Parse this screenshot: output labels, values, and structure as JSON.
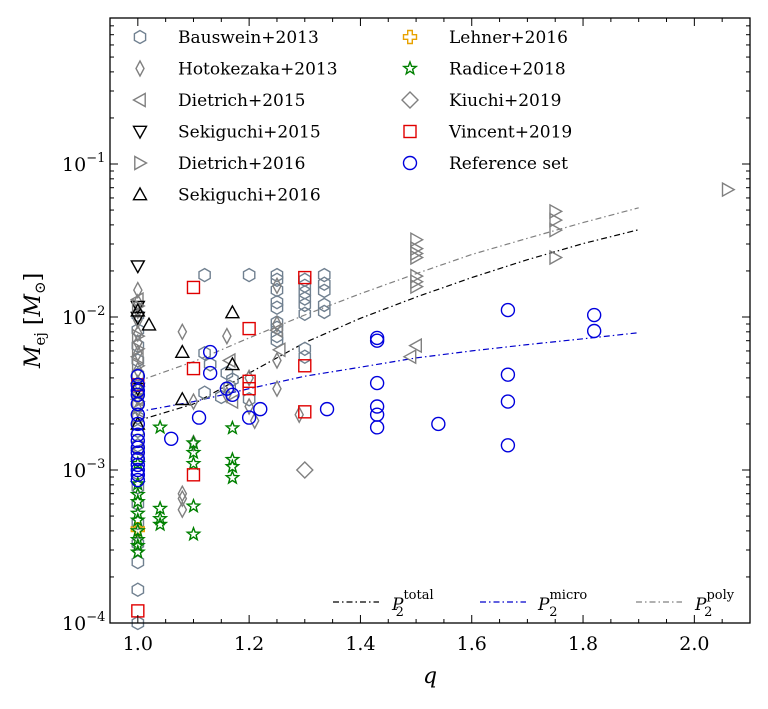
{
  "chart_data": {
    "type": "scatter",
    "title": "",
    "xlabel": "q",
    "ylabel": "M_ej [M_⊙]",
    "xscale": "linear",
    "yscale": "log",
    "xlim": [
      0.95,
      2.1
    ],
    "ylim": [
      0.0001,
      0.9
    ],
    "grid": false,
    "legend_position": "upper-left, two columns",
    "x_ticks": [
      {
        "v": 1.0,
        "label": "1.0"
      },
      {
        "v": 1.2,
        "label": "1.2"
      },
      {
        "v": 1.4,
        "label": "1.4"
      },
      {
        "v": 1.6,
        "label": "1.6"
      },
      {
        "v": 1.8,
        "label": "1.8"
      },
      {
        "v": 2.0,
        "label": "2.0"
      }
    ],
    "y_ticks": [
      {
        "v": 0.0001,
        "base": "10",
        "exp": "−4"
      },
      {
        "v": 0.001,
        "base": "10",
        "exp": "−3"
      },
      {
        "v": 0.01,
        "base": "10",
        "exp": "−2"
      },
      {
        "v": 0.1,
        "base": "10",
        "exp": "−1"
      }
    ],
    "series": [
      {
        "name": "Bauswein+2013",
        "marker": "hexagon",
        "color": "#708090",
        "points": [
          [
            1.0,
            0.0103
          ],
          [
            1.0,
            0.0082
          ],
          [
            1.0,
            0.0065
          ],
          [
            1.0,
            0.0052
          ],
          [
            1.0,
            0.0042
          ],
          [
            1.0,
            0.0033
          ],
          [
            1.0,
            0.0027
          ],
          [
            1.0,
            0.0022
          ],
          [
            1.0,
            0.0018
          ],
          [
            1.0,
            0.00145
          ],
          [
            1.0,
            0.00118
          ],
          [
            1.0,
            0.00095
          ],
          [
            1.0,
            0.00077
          ],
          [
            1.0,
            0.0006
          ],
          [
            1.0,
            0.00045
          ],
          [
            1.0,
            0.00033
          ],
          [
            1.0,
            0.00025
          ],
          [
            1.0,
            0.000165
          ],
          [
            1.0,
            0.0001
          ],
          [
            1.12,
            0.0188
          ],
          [
            1.2,
            0.0188
          ],
          [
            1.25,
            0.0188
          ],
          [
            1.25,
            0.0175
          ],
          [
            1.25,
            0.015
          ],
          [
            1.25,
            0.0125
          ],
          [
            1.25,
            0.0115
          ],
          [
            1.25,
            0.0092
          ],
          [
            1.25,
            0.0085
          ],
          [
            1.25,
            0.0075
          ],
          [
            1.25,
            0.007
          ],
          [
            1.3,
            0.0175
          ],
          [
            1.3,
            0.016
          ],
          [
            1.3,
            0.0145
          ],
          [
            1.3,
            0.0132
          ],
          [
            1.3,
            0.012
          ],
          [
            1.3,
            0.0105
          ],
          [
            1.3,
            0.0062
          ],
          [
            1.3,
            0.0055
          ],
          [
            1.335,
            0.0188
          ],
          [
            1.335,
            0.0165
          ],
          [
            1.335,
            0.0148
          ],
          [
            1.335,
            0.012
          ],
          [
            1.335,
            0.0108
          ],
          [
            1.12,
            0.0058
          ],
          [
            1.13,
            0.0049
          ],
          [
            1.16,
            0.0043
          ],
          [
            1.17,
            0.0039
          ],
          [
            1.165,
            0.0035
          ],
          [
            1.12,
            0.0032
          ],
          [
            1.15,
            0.003
          ],
          [
            1.2,
            0.0029
          ]
        ]
      },
      {
        "name": "Hotokezaka+2013",
        "marker": "thin_diamond",
        "color": "#808080",
        "points": [
          [
            1.0,
            0.015
          ],
          [
            1.0,
            0.0125
          ],
          [
            1.0,
            0.011
          ],
          [
            1.0,
            0.0095
          ],
          [
            1.0,
            0.0078
          ],
          [
            1.0,
            0.0068
          ],
          [
            1.0,
            0.0058
          ],
          [
            1.0,
            0.0045
          ],
          [
            1.0,
            0.0037
          ],
          [
            1.0,
            0.003
          ],
          [
            1.0,
            0.0025
          ],
          [
            1.08,
            0.008
          ],
          [
            1.08,
            0.00055
          ],
          [
            1.08,
            0.00065
          ],
          [
            1.08,
            0.0007
          ],
          [
            1.1,
            0.0028
          ],
          [
            1.1,
            0.0015
          ],
          [
            1.16,
            0.0075
          ],
          [
            1.16,
            0.0031
          ],
          [
            1.2,
            0.004
          ],
          [
            1.2,
            0.0026
          ],
          [
            1.21,
            0.0021
          ],
          [
            1.25,
            0.016
          ],
          [
            1.25,
            0.009
          ],
          [
            1.25,
            0.0052
          ],
          [
            1.25,
            0.0034
          ],
          [
            1.29,
            0.0023
          ]
        ]
      },
      {
        "name": "Dietrich+2015",
        "marker": "triangle-left",
        "color": "#808080",
        "points": [
          [
            1.0,
            0.013
          ],
          [
            1.0,
            0.0055
          ],
          [
            1.0,
            0.0029
          ],
          [
            1.0,
            0.00135
          ],
          [
            1.165,
            0.0052
          ],
          [
            1.25,
            0.0082
          ],
          [
            1.255,
            0.0061
          ],
          [
            1.17,
            0.0028
          ],
          [
            1.5,
            0.0065
          ],
          [
            1.49,
            0.0055
          ]
        ]
      },
      {
        "name": "Sekiguchi+2015",
        "marker": "triangle-down",
        "color": "#000000",
        "points": [
          [
            1.0,
            0.0215
          ],
          [
            1.0,
            0.0117
          ],
          [
            1.0,
            0.0099
          ],
          [
            1.0,
            0.0034
          ]
        ]
      },
      {
        "name": "Dietrich+2016",
        "marker": "triangle-right",
        "color": "#808080",
        "points": [
          [
            2.06,
            0.068
          ],
          [
            1.75,
            0.049
          ],
          [
            1.75,
            0.043
          ],
          [
            1.75,
            0.037
          ],
          [
            1.75,
            0.0245
          ],
          [
            1.5,
            0.032
          ],
          [
            1.5,
            0.028
          ],
          [
            1.5,
            0.026
          ],
          [
            1.5,
            0.0245
          ],
          [
            1.5,
            0.0185
          ],
          [
            1.5,
            0.017
          ],
          [
            1.5,
            0.0158
          ],
          [
            1.0,
            0.0118
          ],
          [
            1.0,
            0.0075
          ],
          [
            1.0,
            0.0062
          ],
          [
            1.0,
            0.0048
          ],
          [
            1.0,
            0.0035
          ],
          [
            1.0,
            0.0028
          ],
          [
            1.0,
            0.0022
          ]
        ]
      },
      {
        "name": "Sekiguchi+2016",
        "marker": "triangle-up",
        "color": "#000000",
        "points": [
          [
            1.0,
            0.011
          ],
          [
            1.0,
            0.002
          ],
          [
            1.02,
            0.0089
          ],
          [
            1.08,
            0.0059
          ],
          [
            1.08,
            0.0029
          ],
          [
            1.17,
            0.0107
          ],
          [
            1.17,
            0.0049
          ]
        ]
      },
      {
        "name": "Lehner+2016",
        "marker": "plus",
        "color": "#e8a200",
        "points": [
          [
            1.0,
            0.00041
          ]
        ]
      },
      {
        "name": "Radice+2018",
        "marker": "star",
        "color": "#008000",
        "points": [
          [
            1.0,
            0.00069
          ],
          [
            1.0,
            0.00062
          ],
          [
            1.0,
            0.00052
          ],
          [
            1.0,
            0.00047
          ],
          [
            1.0,
            0.0004
          ],
          [
            1.0,
            0.00035
          ],
          [
            1.0,
            0.00032
          ],
          [
            1.0,
            0.00029
          ],
          [
            1.04,
            0.0019
          ],
          [
            1.04,
            0.00056
          ],
          [
            1.04,
            0.00048
          ],
          [
            1.04,
            0.00044
          ],
          [
            1.0,
            0.00081
          ],
          [
            1.0,
            0.0011
          ],
          [
            1.1,
            0.0015
          ],
          [
            1.1,
            0.0013
          ],
          [
            1.1,
            0.0011
          ],
          [
            1.1,
            0.00058
          ],
          [
            1.1,
            0.00038
          ],
          [
            1.17,
            0.00188
          ],
          [
            1.17,
            0.00117
          ],
          [
            1.17,
            0.00105
          ],
          [
            1.17,
            0.00089
          ]
        ]
      },
      {
        "name": "Kiuchi+2019",
        "marker": "diamond",
        "color": "#808080",
        "points": [
          [
            1.3,
            0.001
          ]
        ]
      },
      {
        "name": "Vincent+2019",
        "marker": "square",
        "color": "#e00000",
        "points": [
          [
            1.0,
            0.00012
          ],
          [
            1.0,
            0.0036
          ],
          [
            1.1,
            0.0156
          ],
          [
            1.1,
            0.0046
          ],
          [
            1.1,
            0.00093
          ],
          [
            1.2,
            0.0084
          ],
          [
            1.2,
            0.0038
          ],
          [
            1.2,
            0.0034
          ],
          [
            1.3,
            0.0181
          ],
          [
            1.3,
            0.0048
          ],
          [
            1.3,
            0.0024
          ]
        ]
      },
      {
        "name": "Reference set",
        "marker": "circle",
        "color": "#0000dd",
        "points": [
          [
            1.0,
            0.0041
          ],
          [
            1.0,
            0.0036
          ],
          [
            1.0,
            0.0031
          ],
          [
            1.0,
            0.0027
          ],
          [
            1.0,
            0.0023
          ],
          [
            1.0,
            0.002
          ],
          [
            1.0,
            0.0017
          ],
          [
            1.0,
            0.00155
          ],
          [
            1.0,
            0.0014
          ],
          [
            1.0,
            0.0013
          ],
          [
            1.0,
            0.00118
          ],
          [
            1.0,
            0.00108
          ],
          [
            1.0,
            0.001
          ],
          [
            1.0,
            0.00093
          ],
          [
            1.0,
            0.00086
          ],
          [
            1.0,
            0.0033
          ],
          [
            1.06,
            0.0016
          ],
          [
            1.11,
            0.0022
          ],
          [
            1.13,
            0.0043
          ],
          [
            1.13,
            0.0059
          ],
          [
            1.16,
            0.0034
          ],
          [
            1.17,
            0.0031
          ],
          [
            1.2,
            0.0022
          ],
          [
            1.22,
            0.0025
          ],
          [
            1.34,
            0.0025
          ],
          [
            1.43,
            0.0073
          ],
          [
            1.43,
            0.007
          ],
          [
            1.43,
            0.0037
          ],
          [
            1.43,
            0.0026
          ],
          [
            1.43,
            0.0023
          ],
          [
            1.43,
            0.0019
          ],
          [
            1.54,
            0.002
          ],
          [
            1.665,
            0.0111
          ],
          [
            1.665,
            0.0042
          ],
          [
            1.665,
            0.0028
          ],
          [
            1.665,
            0.00145
          ],
          [
            1.82,
            0.0103
          ],
          [
            1.82,
            0.0081
          ]
        ]
      }
    ],
    "fit_lines": [
      {
        "name": "P_2^total",
        "base": "P",
        "sub": "2",
        "sup": "total",
        "color": "#000000",
        "dash": "6,3,1.5,3",
        "points": [
          [
            1.0,
            0.0021
          ],
          [
            1.1,
            0.0027
          ],
          [
            1.2,
            0.0043
          ],
          [
            1.3,
            0.0068
          ],
          [
            1.4,
            0.0098
          ],
          [
            1.5,
            0.0135
          ],
          [
            1.6,
            0.0181
          ],
          [
            1.7,
            0.0237
          ],
          [
            1.8,
            0.0302
          ],
          [
            1.9,
            0.0372
          ]
        ]
      },
      {
        "name": "P_2^micro",
        "base": "P",
        "sub": "2",
        "sup": "micro",
        "color": "#0000cc",
        "dash": "6,3,1.5,3",
        "points": [
          [
            1.0,
            0.0024
          ],
          [
            1.1,
            0.0028
          ],
          [
            1.2,
            0.0034
          ],
          [
            1.3,
            0.0041
          ],
          [
            1.4,
            0.0047
          ],
          [
            1.5,
            0.0054
          ],
          [
            1.6,
            0.006
          ],
          [
            1.7,
            0.0066
          ],
          [
            1.8,
            0.0072
          ],
          [
            1.9,
            0.0079
          ]
        ]
      },
      {
        "name": "P_2^poly",
        "base": "P",
        "sub": "2",
        "sup": "poly",
        "color": "#808080",
        "dash": "6,3,1.5,3",
        "points": [
          [
            1.0,
            0.0038
          ],
          [
            1.1,
            0.0051
          ],
          [
            1.2,
            0.0073
          ],
          [
            1.3,
            0.0103
          ],
          [
            1.4,
            0.0142
          ],
          [
            1.5,
            0.0192
          ],
          [
            1.6,
            0.0256
          ],
          [
            1.7,
            0.0327
          ],
          [
            1.8,
            0.0414
          ],
          [
            1.9,
            0.0517
          ]
        ]
      }
    ]
  }
}
